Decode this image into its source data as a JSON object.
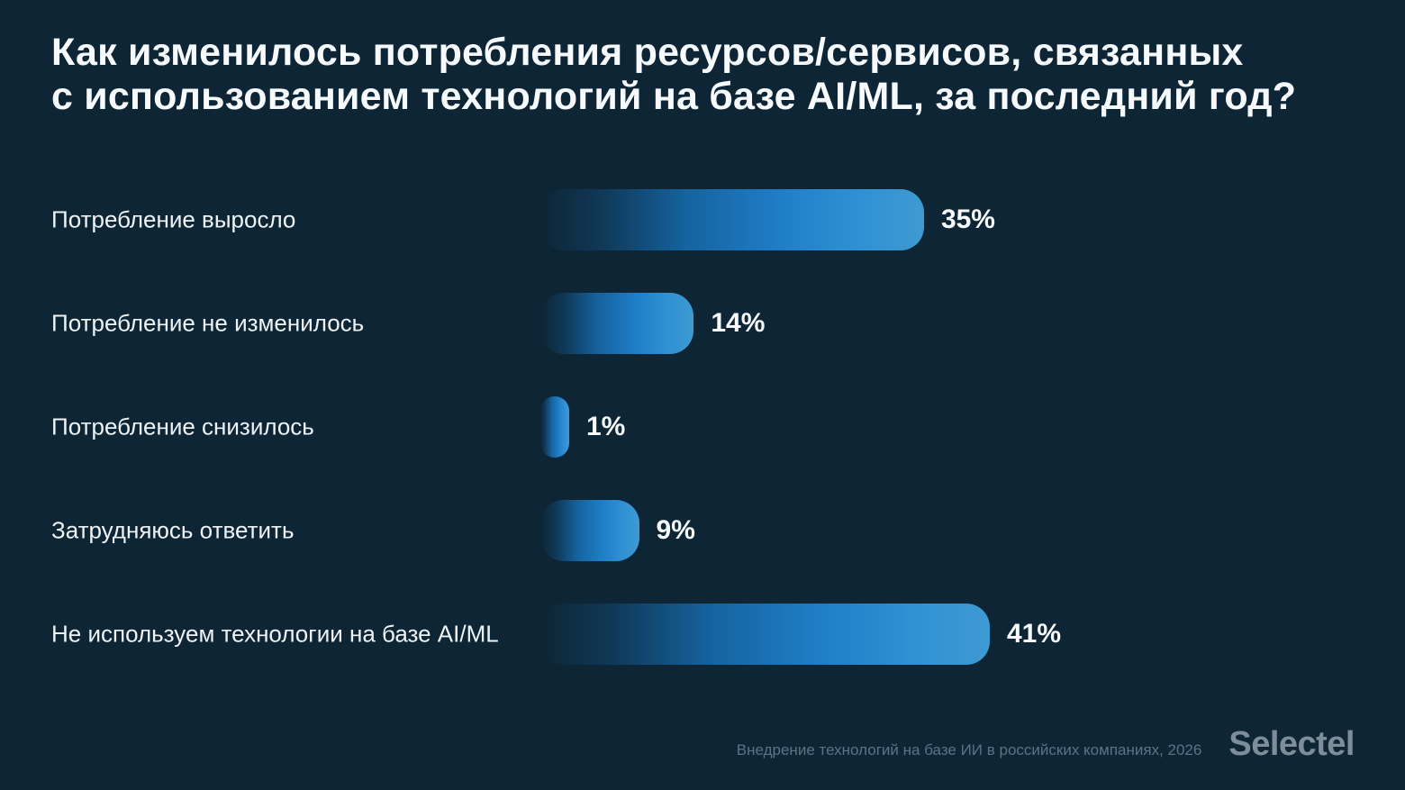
{
  "page": {
    "background_color": "#0d2534",
    "accent_color": "#2f90d3"
  },
  "title_lines": [
    "Как изменилось потребления ресурсов/сервисов, связанных",
    "с использованием технологий на базе AI/ML, за последний год?"
  ],
  "chart_data": {
    "type": "bar",
    "orientation": "horizontal",
    "title": "Как изменилось потребления ресурсов/сервисов, связанных с использованием технологий на базе AI/ML, за последний год?",
    "categories": [
      "Потребление выросло",
      "Потребление не изменилось",
      "Потребление снизилось",
      "Затрудняюсь ответить",
      "Не используем технологии на базе AI/ML"
    ],
    "values": [
      35,
      14,
      1,
      9,
      41
    ],
    "value_labels": [
      "35%",
      "14%",
      "1%",
      "9%",
      "41%"
    ],
    "unit": "%",
    "xlim": [
      0,
      45
    ],
    "grid": false,
    "legend": false,
    "bar_gradient_start": "#15548c",
    "bar_gradient_end": "#3e9ad2"
  },
  "footer": {
    "source": "Внедрение технологий на базе ИИ в российских компаниях, 2026",
    "logo": "Selectel"
  }
}
